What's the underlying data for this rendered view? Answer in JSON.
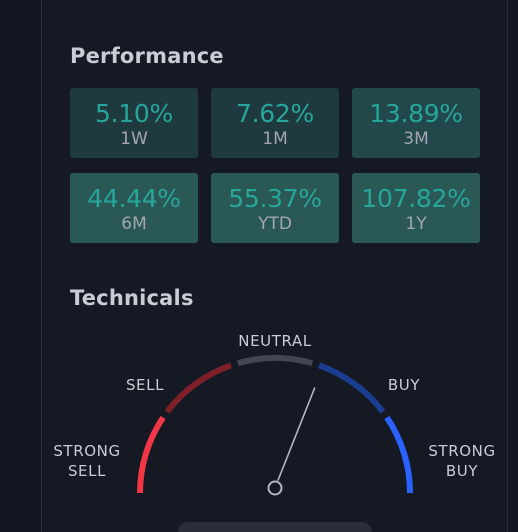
{
  "performance": {
    "title": "Performance",
    "items": [
      {
        "value": "5.10%",
        "label": "1W",
        "bg": "#1f3a3f"
      },
      {
        "value": "7.62%",
        "label": "1M",
        "bg": "#1f3a3f"
      },
      {
        "value": "13.89%",
        "label": "3M",
        "bg": "#22484b"
      },
      {
        "value": "44.44%",
        "label": "6M",
        "bg": "#2a5955"
      },
      {
        "value": "55.37%",
        "label": "YTD",
        "bg": "#2a5955"
      },
      {
        "value": "107.82%",
        "label": "1Y",
        "bg": "#2a5955"
      }
    ]
  },
  "technicals": {
    "title": "Technicals",
    "gauge": {
      "labels": {
        "strong_sell_1": "STRONG",
        "strong_sell_2": "SELL",
        "sell": "SELL",
        "neutral": "NEUTRAL",
        "buy": "BUY",
        "strong_buy_1": "STRONG",
        "strong_buy_2": "BUY"
      },
      "segment_colors": {
        "strong_sell": "#f23645",
        "sell": "#7f1f27",
        "neutral": "#434651",
        "buy": "#1a3d8f",
        "strong_buy": "#2962ff"
      },
      "needle_level": 0.62
    }
  },
  "colors": {
    "background": "#131722",
    "panel": "#151924",
    "accent_positive": "#26a69a",
    "text_muted": "#a3a6af"
  }
}
